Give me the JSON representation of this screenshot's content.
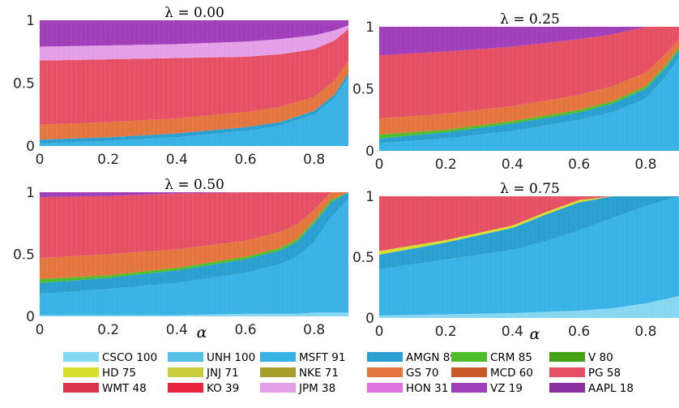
{
  "chart_data": {
    "type": "area",
    "stacked": true,
    "xlabel": "α",
    "legend_placement": "bottom",
    "colors": {
      "CSCO 100": "#86d7f2",
      "UNH 100": "#57c0e6",
      "MSFT 91": "#39b2e5",
      "AMGN 89": "#2a9fd0",
      "CRM 85": "#4fbe2a",
      "V 80": "#46a117",
      "HD 75": "#d8de2c",
      "JNJ 71": "#c8cc3a",
      "NKE 71": "#a6a02a",
      "GS 70": "#e3763f",
      "MCD 60": "#c85a2a",
      "PG 58": "#e65065",
      "WMT 48": "#d8334c",
      "KO 39": "#e8243f",
      "JPM 38": "#e59fe8",
      "HON 31": "#dc72e0",
      "VZ 19": "#a03fb9",
      "AAPL 18": "#8a2ea0"
    },
    "legend": [
      "CSCO 100",
      "UNH 100",
      "MSFT 91",
      "AMGN 89",
      "CRM 85",
      "V 80",
      "HD 75",
      "JNJ 71",
      "NKE 71",
      "GS 70",
      "MCD 60",
      "PG 58",
      "WMT 48",
      "KO 39",
      "JPM 38",
      "HON 31",
      "VZ 19",
      "AAPL 18"
    ],
    "panels": [
      {
        "title": "λ = 0.00",
        "xticks": [
          "0",
          "0.2",
          "0.4",
          "0.6",
          "0.8"
        ],
        "yticks": [
          "0",
          "0.5",
          "1"
        ],
        "xlim": [
          0,
          0.9
        ],
        "ylim": [
          0,
          1
        ],
        "x": [
          0,
          0.2,
          0.4,
          0.6,
          0.7,
          0.8,
          0.86,
          0.9
        ],
        "boundaries": [
          {
            "upper_of": "MSFT 91",
            "y": [
              0.02,
              0.04,
              0.07,
              0.12,
              0.16,
              0.25,
              0.38,
              0.55
            ]
          },
          {
            "upper_of": "AMGN 89",
            "y": [
              0.05,
              0.07,
              0.1,
              0.15,
              0.19,
              0.28,
              0.41,
              0.58
            ]
          },
          {
            "upper_of": "GS 70",
            "y": [
              0.17,
              0.19,
              0.22,
              0.27,
              0.31,
              0.39,
              0.52,
              0.68
            ]
          },
          {
            "upper_of": "PG 58",
            "y": [
              0.68,
              0.69,
              0.7,
              0.71,
              0.73,
              0.77,
              0.84,
              0.93
            ]
          },
          {
            "upper_of": "JPM 38",
            "y": [
              0.79,
              0.8,
              0.81,
              0.83,
              0.85,
              0.88,
              0.92,
              0.96
            ]
          },
          {
            "upper_of": "VZ 19",
            "y": [
              1,
              1,
              1,
              1,
              1,
              1,
              1,
              1
            ]
          }
        ]
      },
      {
        "title": "λ = 0.25",
        "xticks": [
          "0",
          "0.2",
          "0.4",
          "0.6",
          "0.8"
        ],
        "yticks": [
          "0",
          "0.5",
          "1"
        ],
        "xlim": [
          0,
          0.9
        ],
        "ylim": [
          0,
          1
        ],
        "x": [
          0,
          0.2,
          0.4,
          0.6,
          0.7,
          0.8,
          0.86,
          0.9
        ],
        "boundaries": [
          {
            "upper_of": "MSFT 91",
            "y": [
              0.06,
              0.1,
              0.16,
              0.25,
              0.31,
              0.42,
              0.6,
              0.75
            ]
          },
          {
            "upper_of": "AMGN 89",
            "y": [
              0.1,
              0.15,
              0.22,
              0.31,
              0.38,
              0.5,
              0.67,
              0.81
            ]
          },
          {
            "upper_of": "CRM 85",
            "y": [
              0.13,
              0.17,
              0.24,
              0.33,
              0.4,
              0.52,
              0.69,
              0.83
            ]
          },
          {
            "upper_of": "GS 70",
            "y": [
              0.26,
              0.3,
              0.36,
              0.45,
              0.52,
              0.63,
              0.78,
              0.9
            ]
          },
          {
            "upper_of": "PG 58",
            "y": [
              0.77,
              0.8,
              0.84,
              0.9,
              0.94,
              1,
              1,
              1
            ]
          },
          {
            "upper_of": "VZ 19",
            "y": [
              1,
              1,
              1,
              1,
              1,
              1,
              1,
              1
            ]
          }
        ]
      },
      {
        "title": "λ = 0.50",
        "xticks": [
          "0",
          "0.2",
          "0.4",
          "0.6",
          "0.8"
        ],
        "yticks": [
          "0",
          "0.5",
          "1"
        ],
        "xlim": [
          0,
          0.9
        ],
        "ylim": [
          0,
          1
        ],
        "x": [
          0,
          0.2,
          0.4,
          0.6,
          0.7,
          0.75,
          0.8,
          0.85,
          0.9
        ],
        "boundaries": [
          {
            "upper_of": "CSCO 100",
            "y": [
              0.01,
              0.01,
              0.01,
              0.02,
              0.02,
              0.02,
              0.03,
              0.03,
              0.03
            ]
          },
          {
            "upper_of": "MSFT 91",
            "y": [
              0.18,
              0.22,
              0.27,
              0.35,
              0.42,
              0.48,
              0.6,
              0.8,
              0.95
            ]
          },
          {
            "upper_of": "AMGN 89",
            "y": [
              0.27,
              0.31,
              0.37,
              0.46,
              0.53,
              0.6,
              0.75,
              0.92,
              1
            ]
          },
          {
            "upper_of": "CRM 85",
            "y": [
              0.3,
              0.33,
              0.39,
              0.48,
              0.55,
              0.62,
              0.77,
              0.94,
              1
            ]
          },
          {
            "upper_of": "GS 70",
            "y": [
              0.47,
              0.5,
              0.54,
              0.61,
              0.68,
              0.74,
              0.86,
              1,
              1
            ]
          },
          {
            "upper_of": "PG 58",
            "y": [
              0.96,
              0.97,
              0.99,
              1,
              1,
              1,
              1,
              1,
              1
            ]
          },
          {
            "upper_of": "VZ 19",
            "y": [
              1,
              1,
              1,
              1,
              1,
              1,
              1,
              1,
              1
            ]
          }
        ]
      },
      {
        "title": "λ = 0.75",
        "xticks": [
          "0",
          "0.2",
          "0.4",
          "0.6",
          "0.8"
        ],
        "yticks": [
          "0",
          "0.5",
          "1"
        ],
        "xlim": [
          0,
          0.9
        ],
        "ylim": [
          0,
          1
        ],
        "x": [
          0,
          0.2,
          0.4,
          0.5,
          0.6,
          0.7,
          0.8,
          0.9
        ],
        "boundaries": [
          {
            "upper_of": "CSCO 100",
            "y": [
              0.02,
              0.03,
              0.04,
              0.05,
              0.06,
              0.08,
              0.12,
              0.18
            ]
          },
          {
            "upper_of": "MSFT 91",
            "y": [
              0.4,
              0.48,
              0.56,
              0.63,
              0.72,
              0.82,
              0.92,
              1
            ]
          },
          {
            "upper_of": "AMGN 89",
            "y": [
              0.52,
              0.62,
              0.74,
              0.85,
              0.95,
              1,
              1,
              1
            ]
          },
          {
            "upper_of": "HD 75",
            "y": [
              0.55,
              0.64,
              0.76,
              0.87,
              0.97,
              1,
              1,
              1
            ]
          },
          {
            "upper_of": "PG 58",
            "y": [
              1,
              1,
              1,
              1,
              1,
              1,
              1,
              1
            ]
          }
        ]
      }
    ]
  }
}
